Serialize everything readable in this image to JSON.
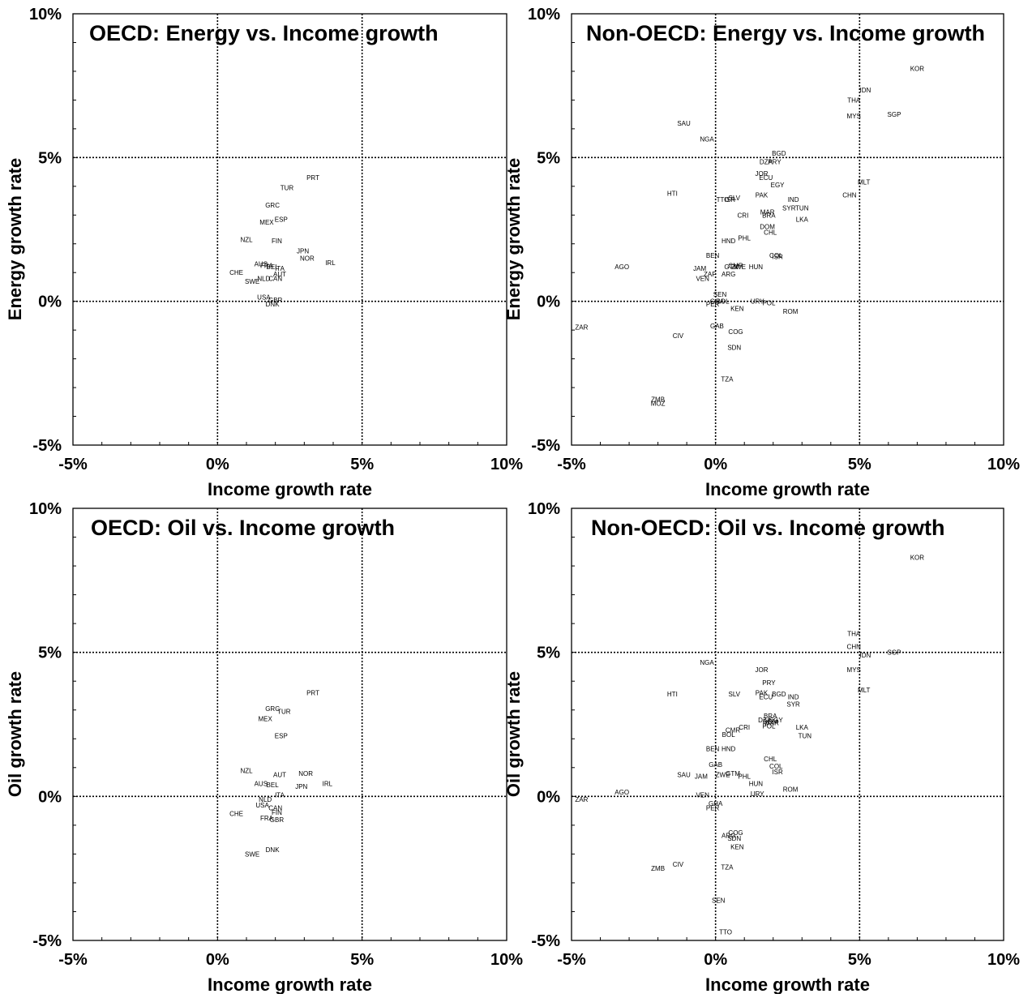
{
  "chart_data": [
    {
      "type": "scatter",
      "title": "OECD: Energy vs. Income growth",
      "xlabel": "Income growth rate",
      "ylabel": "Energy growth rate",
      "xlim": [
        -5,
        10
      ],
      "ylim": [
        -5,
        10
      ],
      "xticks": [
        "-5%",
        "0%",
        "5%",
        "10%"
      ],
      "yticks": [
        "-5%",
        "0%",
        "5%",
        "10%"
      ],
      "points": [
        {
          "label": "PRT",
          "x": 3.3,
          "y": 4.3
        },
        {
          "label": "TUR",
          "x": 2.4,
          "y": 3.95
        },
        {
          "label": "GRC",
          "x": 1.9,
          "y": 3.35
        },
        {
          "label": "MEX",
          "x": 1.7,
          "y": 2.75
        },
        {
          "label": "ESP",
          "x": 2.2,
          "y": 2.85
        },
        {
          "label": "NZL",
          "x": 1.0,
          "y": 2.15
        },
        {
          "label": "FIN",
          "x": 2.05,
          "y": 2.1
        },
        {
          "label": "JPN",
          "x": 2.95,
          "y": 1.75
        },
        {
          "label": "NOR",
          "x": 3.1,
          "y": 1.5
        },
        {
          "label": "IRL",
          "x": 3.9,
          "y": 1.35
        },
        {
          "label": "AUS",
          "x": 1.5,
          "y": 1.3
        },
        {
          "label": "FRA",
          "x": 1.7,
          "y": 1.25
        },
        {
          "label": "BEL",
          "x": 1.9,
          "y": 1.2
        },
        {
          "label": "ITA",
          "x": 2.15,
          "y": 1.15
        },
        {
          "label": "AUT",
          "x": 2.15,
          "y": 0.95
        },
        {
          "label": "CHE",
          "x": 0.65,
          "y": 1.0
        },
        {
          "label": "NLD",
          "x": 1.6,
          "y": 0.8
        },
        {
          "label": "CAN",
          "x": 2.0,
          "y": 0.8
        },
        {
          "label": "SWE",
          "x": 1.2,
          "y": 0.7
        },
        {
          "label": "USA",
          "x": 1.6,
          "y": 0.15
        },
        {
          "label": "GBR",
          "x": 2.0,
          "y": 0.05
        },
        {
          "label": "DNK",
          "x": 1.9,
          "y": -0.1
        }
      ]
    },
    {
      "type": "scatter",
      "title": "Non-OECD: Energy vs. Income growth",
      "xlabel": "Income growth rate",
      "ylabel": "Energy growth rate",
      "xlim": [
        -5,
        10
      ],
      "ylim": [
        -5,
        10
      ],
      "xticks": [
        "-5%",
        "0%",
        "5%",
        "10%"
      ],
      "yticks": [
        "-5%",
        "0%",
        "5%",
        "10%"
      ],
      "points": [
        {
          "label": "KOR",
          "x": 7.0,
          "y": 8.1
        },
        {
          "label": "IDN",
          "x": 5.2,
          "y": 7.35
        },
        {
          "label": "THA",
          "x": 4.8,
          "y": 7.0
        },
        {
          "label": "MYS",
          "x": 4.8,
          "y": 6.45
        },
        {
          "label": "SGP",
          "x": 6.2,
          "y": 6.5
        },
        {
          "label": "SAU",
          "x": -1.1,
          "y": 6.2
        },
        {
          "label": "NGA",
          "x": -0.3,
          "y": 5.65
        },
        {
          "label": "BGD",
          "x": 2.2,
          "y": 5.15
        },
        {
          "label": "DZA",
          "x": 1.75,
          "y": 4.85
        },
        {
          "label": "PRY",
          "x": 2.05,
          "y": 4.85
        },
        {
          "label": "JOR",
          "x": 1.6,
          "y": 4.45
        },
        {
          "label": "ECU",
          "x": 1.75,
          "y": 4.3
        },
        {
          "label": "EGY",
          "x": 2.15,
          "y": 4.05
        },
        {
          "label": "MLT",
          "x": 5.15,
          "y": 4.15
        },
        {
          "label": "CHN",
          "x": 4.65,
          "y": 3.7
        },
        {
          "label": "HTI",
          "x": -1.5,
          "y": 3.75
        },
        {
          "label": "PAK",
          "x": 1.6,
          "y": 3.7
        },
        {
          "label": "IND",
          "x": 2.7,
          "y": 3.55
        },
        {
          "label": "SLV",
          "x": 0.65,
          "y": 3.6
        },
        {
          "label": "TTO",
          "x": 0.25,
          "y": 3.55
        },
        {
          "label": "ISR",
          "x": 0.5,
          "y": 3.55
        },
        {
          "label": "SYR",
          "x": 2.55,
          "y": 3.25
        },
        {
          "label": "TUN",
          "x": 3.0,
          "y": 3.25
        },
        {
          "label": "CRI",
          "x": 0.95,
          "y": 3.0
        },
        {
          "label": "MAR",
          "x": 1.8,
          "y": 3.1
        },
        {
          "label": "BRA",
          "x": 1.85,
          "y": 3.0
        },
        {
          "label": "LKA",
          "x": 3.0,
          "y": 2.85
        },
        {
          "label": "DOM",
          "x": 1.8,
          "y": 2.6
        },
        {
          "label": "CHL",
          "x": 1.9,
          "y": 2.4
        },
        {
          "label": "PHL",
          "x": 1.0,
          "y": 2.2
        },
        {
          "label": "HND",
          "x": 0.45,
          "y": 2.1
        },
        {
          "label": "BEN",
          "x": -0.1,
          "y": 1.6
        },
        {
          "label": "COL",
          "x": 2.1,
          "y": 1.6
        },
        {
          "label": "ISR",
          "x": 2.15,
          "y": 1.55
        },
        {
          "label": "CMR",
          "x": 0.7,
          "y": 1.25
        },
        {
          "label": "GTM",
          "x": 0.55,
          "y": 1.2
        },
        {
          "label": "ZWE",
          "x": 0.8,
          "y": 1.2
        },
        {
          "label": "HUN",
          "x": 1.4,
          "y": 1.2
        },
        {
          "label": "JAM",
          "x": -0.55,
          "y": 1.15
        },
        {
          "label": "ZAF",
          "x": -0.2,
          "y": 0.95
        },
        {
          "label": "ARG",
          "x": 0.45,
          "y": 0.95
        },
        {
          "label": "VEN",
          "x": -0.45,
          "y": 0.8
        },
        {
          "label": "AGO",
          "x": -3.25,
          "y": 1.2
        },
        {
          "label": "SEN",
          "x": 0.15,
          "y": 0.25
        },
        {
          "label": "GHA",
          "x": 0.05,
          "y": 0.0
        },
        {
          "label": "BOL",
          "x": 0.25,
          "y": 0.0
        },
        {
          "label": "PER",
          "x": -0.1,
          "y": -0.1
        },
        {
          "label": "URY",
          "x": 1.45,
          "y": 0.0
        },
        {
          "label": "POL",
          "x": 1.85,
          "y": -0.05
        },
        {
          "label": "KEN",
          "x": 0.75,
          "y": -0.25
        },
        {
          "label": "ROM",
          "x": 2.6,
          "y": -0.35
        },
        {
          "label": "GAB",
          "x": 0.05,
          "y": -0.85
        },
        {
          "label": "COG",
          "x": 0.7,
          "y": -1.05
        },
        {
          "label": "ZAR",
          "x": -4.65,
          "y": -0.9
        },
        {
          "label": "CIV",
          "x": -1.3,
          "y": -1.2
        },
        {
          "label": "SDN",
          "x": 0.65,
          "y": -1.6
        },
        {
          "label": "TZA",
          "x": 0.4,
          "y": -2.7
        },
        {
          "label": "ZMB",
          "x": -2.0,
          "y": -3.4
        },
        {
          "label": "MOZ",
          "x": -2.0,
          "y": -3.55
        }
      ]
    },
    {
      "type": "scatter",
      "title": "OECD: Oil vs. Income growth",
      "xlabel": "Income growth rate",
      "ylabel": "Oil growth rate",
      "xlim": [
        -5,
        10
      ],
      "ylim": [
        -5,
        10
      ],
      "xticks": [
        "-5%",
        "0%",
        "5%",
        "10%"
      ],
      "yticks": [
        "-5%",
        "0%",
        "5%",
        "10%"
      ],
      "points": [
        {
          "label": "PRT",
          "x": 3.3,
          "y": 3.6
        },
        {
          "label": "GRC",
          "x": 1.9,
          "y": 3.05
        },
        {
          "label": "TUR",
          "x": 2.3,
          "y": 2.95
        },
        {
          "label": "MEX",
          "x": 1.65,
          "y": 2.7
        },
        {
          "label": "ESP",
          "x": 2.2,
          "y": 2.1
        },
        {
          "label": "NZL",
          "x": 1.0,
          "y": 0.9
        },
        {
          "label": "AUT",
          "x": 2.15,
          "y": 0.75
        },
        {
          "label": "NOR",
          "x": 3.05,
          "y": 0.8
        },
        {
          "label": "AUS",
          "x": 1.5,
          "y": 0.45
        },
        {
          "label": "BEL",
          "x": 1.9,
          "y": 0.4
        },
        {
          "label": "JPN",
          "x": 2.9,
          "y": 0.35
        },
        {
          "label": "IRL",
          "x": 3.8,
          "y": 0.45
        },
        {
          "label": "ITA",
          "x": 2.15,
          "y": 0.05
        },
        {
          "label": "NLD",
          "x": 1.65,
          "y": -0.1
        },
        {
          "label": "USA",
          "x": 1.55,
          "y": -0.3
        },
        {
          "label": "CAN",
          "x": 2.0,
          "y": -0.4
        },
        {
          "label": "FIN",
          "x": 2.05,
          "y": -0.55
        },
        {
          "label": "CHE",
          "x": 0.65,
          "y": -0.6
        },
        {
          "label": "FRA",
          "x": 1.7,
          "y": -0.75
        },
        {
          "label": "GBR",
          "x": 2.05,
          "y": -0.8
        },
        {
          "label": "DNK",
          "x": 1.9,
          "y": -1.85
        },
        {
          "label": "SWE",
          "x": 1.2,
          "y": -2.0
        }
      ]
    },
    {
      "type": "scatter",
      "title": "Non-OECD: Oil vs. Income growth",
      "xlabel": "Income growth rate",
      "ylabel": "Oil growth rate",
      "xlim": [
        -5,
        10
      ],
      "ylim": [
        -5,
        10
      ],
      "xticks": [
        "-5%",
        "0%",
        "5%",
        "10%"
      ],
      "yticks": [
        "-5%",
        "0%",
        "5%",
        "10%"
      ],
      "points": [
        {
          "label": "KOR",
          "x": 7.0,
          "y": 8.3
        },
        {
          "label": "THA",
          "x": 4.8,
          "y": 5.65
        },
        {
          "label": "CHN",
          "x": 4.8,
          "y": 5.2
        },
        {
          "label": "SGP",
          "x": 6.2,
          "y": 5.0
        },
        {
          "label": "IDN",
          "x": 5.2,
          "y": 4.9
        },
        {
          "label": "NGA",
          "x": -0.3,
          "y": 4.65
        },
        {
          "label": "JOR",
          "x": 1.6,
          "y": 4.4
        },
        {
          "label": "MYS",
          "x": 4.8,
          "y": 4.4
        },
        {
          "label": "PRY",
          "x": 1.85,
          "y": 3.95
        },
        {
          "label": "MLT",
          "x": 5.15,
          "y": 3.7
        },
        {
          "label": "HTI",
          "x": -1.5,
          "y": 3.55
        },
        {
          "label": "SLV",
          "x": 0.65,
          "y": 3.55
        },
        {
          "label": "PAK",
          "x": 1.6,
          "y": 3.6
        },
        {
          "label": "ECU",
          "x": 1.75,
          "y": 3.45
        },
        {
          "label": "BGD",
          "x": 2.2,
          "y": 3.55
        },
        {
          "label": "IND",
          "x": 2.7,
          "y": 3.45
        },
        {
          "label": "SYR",
          "x": 2.7,
          "y": 3.2
        },
        {
          "label": "BRA",
          "x": 1.9,
          "y": 2.8
        },
        {
          "label": "DZA",
          "x": 1.7,
          "y": 2.65
        },
        {
          "label": "EGY",
          "x": 2.1,
          "y": 2.65
        },
        {
          "label": "DOM",
          "x": 1.9,
          "y": 2.6
        },
        {
          "label": "MAR",
          "x": 1.95,
          "y": 2.55
        },
        {
          "label": "CRI",
          "x": 1.0,
          "y": 2.4
        },
        {
          "label": "CMR",
          "x": 0.6,
          "y": 2.3
        },
        {
          "label": "POL",
          "x": 1.85,
          "y": 2.45
        },
        {
          "label": "LKA",
          "x": 3.0,
          "y": 2.4
        },
        {
          "label": "TUN",
          "x": 3.1,
          "y": 2.1
        },
        {
          "label": "BOL",
          "x": 0.45,
          "y": 2.15
        },
        {
          "label": "BEN",
          "x": -0.1,
          "y": 1.65
        },
        {
          "label": "HND",
          "x": 0.45,
          "y": 1.65
        },
        {
          "label": "CHL",
          "x": 1.9,
          "y": 1.3
        },
        {
          "label": "COL",
          "x": 2.1,
          "y": 1.05
        },
        {
          "label": "GAB",
          "x": 0.0,
          "y": 1.1
        },
        {
          "label": "ISR",
          "x": 2.15,
          "y": 0.85
        },
        {
          "label": "GTM",
          "x": 0.6,
          "y": 0.8
        },
        {
          "label": "SAU",
          "x": -1.1,
          "y": 0.75
        },
        {
          "label": "JAM",
          "x": -0.5,
          "y": 0.7
        },
        {
          "label": "ZWE",
          "x": 0.25,
          "y": 0.75
        },
        {
          "label": "PHL",
          "x": 1.0,
          "y": 0.7
        },
        {
          "label": "HUN",
          "x": 1.4,
          "y": 0.45
        },
        {
          "label": "ROM",
          "x": 2.6,
          "y": 0.25
        },
        {
          "label": "URY",
          "x": 1.45,
          "y": 0.1
        },
        {
          "label": "AGO",
          "x": -3.25,
          "y": 0.15
        },
        {
          "label": "VEN",
          "x": -0.45,
          "y": 0.05
        },
        {
          "label": "ZAR",
          "x": -4.65,
          "y": -0.1
        },
        {
          "label": "GHA",
          "x": 0.0,
          "y": -0.25
        },
        {
          "label": "PER",
          "x": -0.1,
          "y": -0.4
        },
        {
          "label": "COG",
          "x": 0.7,
          "y": -1.25
        },
        {
          "label": "ARG",
          "x": 0.45,
          "y": -1.35
        },
        {
          "label": "SDN",
          "x": 0.65,
          "y": -1.45
        },
        {
          "label": "KEN",
          "x": 0.75,
          "y": -1.75
        },
        {
          "label": "CIV",
          "x": -1.3,
          "y": -2.35
        },
        {
          "label": "ZMB",
          "x": -2.0,
          "y": -2.5
        },
        {
          "label": "TZA",
          "x": 0.4,
          "y": -2.45
        },
        {
          "label": "SEN",
          "x": 0.1,
          "y": -3.6
        },
        {
          "label": "TTO",
          "x": 0.35,
          "y": -4.7
        }
      ]
    }
  ]
}
